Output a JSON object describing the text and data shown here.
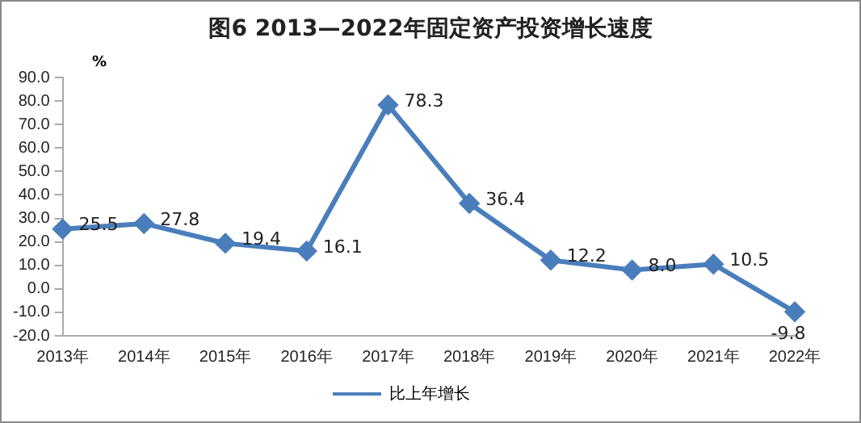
{
  "chart_data": {
    "type": "line",
    "title": "图6  2013—2022年固定资产投资增长速度",
    "ylabel": "%",
    "categories": [
      "2013年",
      "2014年",
      "2015年",
      "2016年",
      "2017年",
      "2018年",
      "2019年",
      "2020年",
      "2021年",
      "2022年"
    ],
    "series": [
      {
        "name": "比上年增长",
        "color": "#4a7ebb",
        "values": [
          25.5,
          27.8,
          19.4,
          16.1,
          78.3,
          36.4,
          12.2,
          8.0,
          10.5,
          -9.8
        ],
        "value_labels": [
          "25.5",
          "27.8",
          "19.4",
          "16.1",
          "78.3",
          "36.4",
          "12.2",
          "8.0",
          "10.5",
          "-9.8"
        ]
      }
    ],
    "ylim": [
      -20,
      90
    ],
    "yticks": [
      {
        "value": -20,
        "label": "-20.0"
      },
      {
        "value": -10,
        "label": "-10.0"
      },
      {
        "value": 0,
        "label": "0.0"
      },
      {
        "value": 10,
        "label": "10.0"
      },
      {
        "value": 20,
        "label": "20.0"
      },
      {
        "value": 30,
        "label": "30.0"
      },
      {
        "value": 40,
        "label": "40.0"
      },
      {
        "value": 50,
        "label": "50.0"
      },
      {
        "value": 60,
        "label": "60.0"
      },
      {
        "value": 70,
        "label": "70.0"
      },
      {
        "value": 80,
        "label": "80.0"
      },
      {
        "value": 90,
        "label": "90.0"
      }
    ],
    "grid": false,
    "legend": "bottom",
    "marker": "diamond",
    "line_style": "solid"
  }
}
